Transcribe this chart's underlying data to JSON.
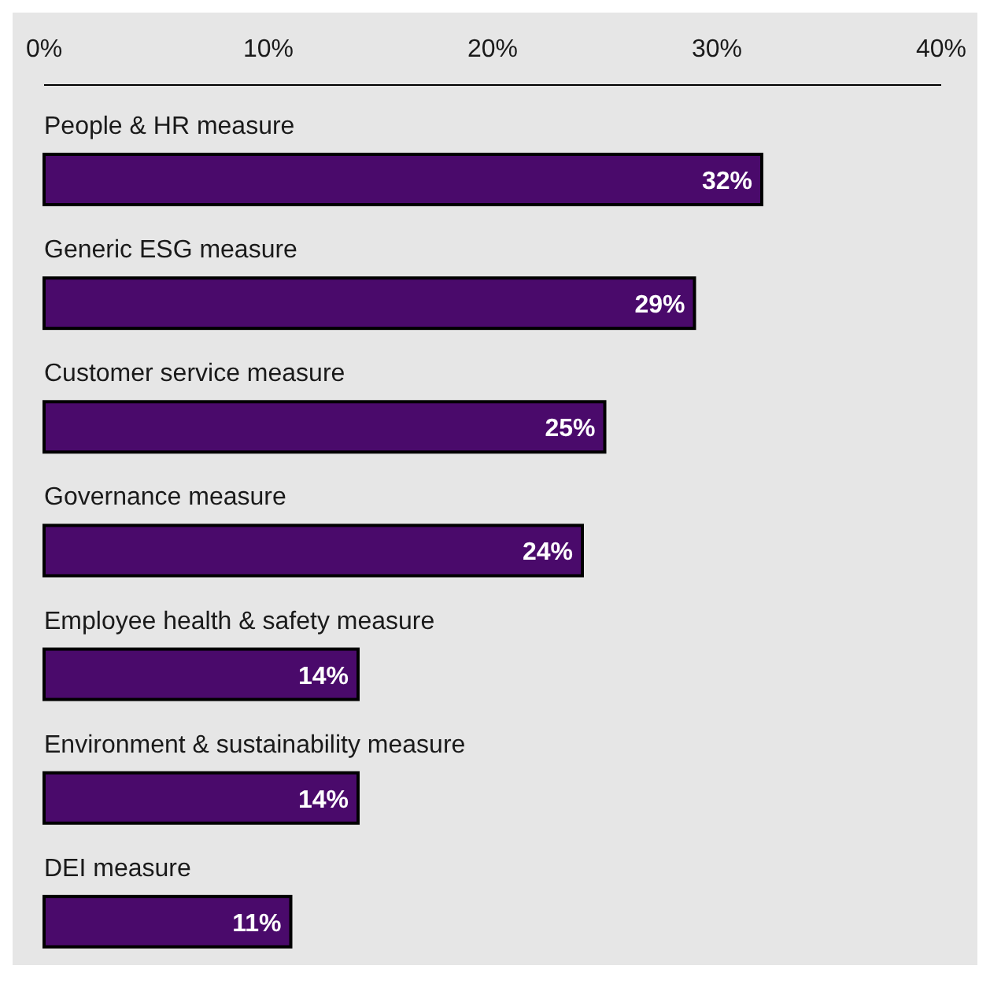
{
  "chart_data": {
    "type": "bar",
    "orientation": "horizontal",
    "categories": [
      "People & HR measure",
      "Generic ESG measure",
      "Customer service measure",
      "Governance measure",
      "Employee health & safety measure",
      "Environment & sustainability measure",
      "DEI measure"
    ],
    "values": [
      32,
      29,
      25,
      24,
      14,
      14,
      11
    ],
    "color": "#4a0a6b",
    "xlim": [
      0,
      40
    ],
    "xticks": [
      {
        "value": 0,
        "label": "0%"
      },
      {
        "value": 10,
        "label": "10%"
      },
      {
        "value": 20,
        "label": "20%"
      },
      {
        "value": 30,
        "label": "30%"
      },
      {
        "value": 40,
        "label": "40%"
      }
    ],
    "value_labels": [
      "32%",
      "29%",
      "25%",
      "24%",
      "14%",
      "14%",
      "11%"
    ],
    "grid": false
  }
}
